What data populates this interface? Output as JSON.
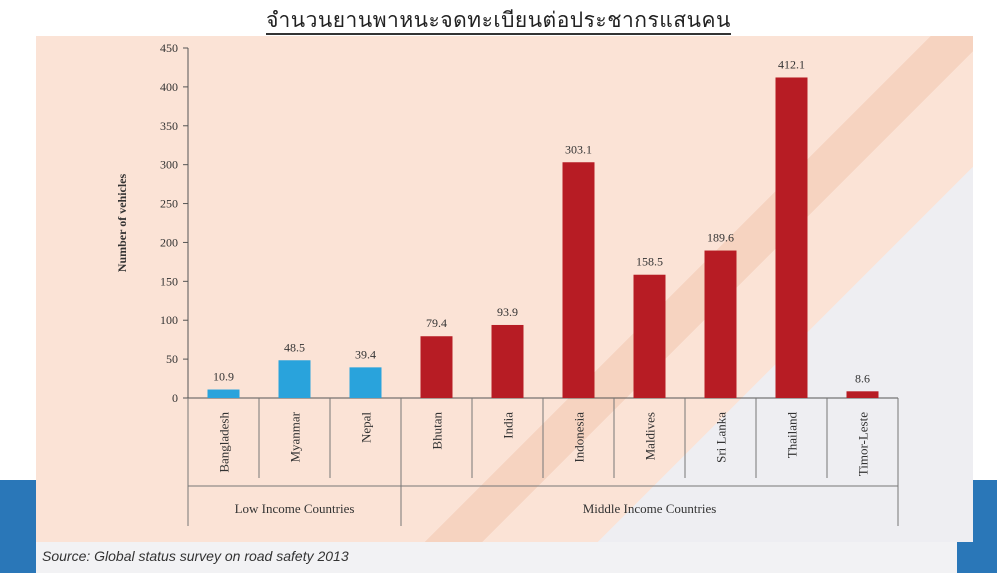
{
  "title": "จำนวนยานพาหนะจดทะเบียนต่อประชากรแสนคน",
  "source": "Source: Global status survey on road safety 2013",
  "chart_data": {
    "type": "bar",
    "ylabel": "Number of vehicles",
    "ylim": [
      0,
      450
    ],
    "yticks": [
      0,
      50,
      100,
      150,
      200,
      250,
      300,
      350,
      400,
      450
    ],
    "categories": [
      "Bangladesh",
      "Myanmar",
      "Nepal",
      "Bhutan",
      "India",
      "Indonesia",
      "Maldives",
      "Sri Lanka",
      "Thailand",
      "Timor-Leste"
    ],
    "values": [
      10.9,
      48.5,
      39.4,
      79.4,
      93.9,
      303.1,
      158.5,
      189.6,
      412.1,
      8.6
    ],
    "value_labels": [
      "10.9",
      "48.5",
      "39.4",
      "79.4",
      "93.9",
      "303.1",
      "158.5",
      "189.6",
      "412.1",
      "8.6"
    ],
    "groups": [
      {
        "name": "Low Income Countries",
        "count": 3,
        "color": "#29a3dc"
      },
      {
        "name": "Middle Income Countries",
        "count": 7,
        "color": "#b71c24"
      }
    ],
    "grid": false
  }
}
